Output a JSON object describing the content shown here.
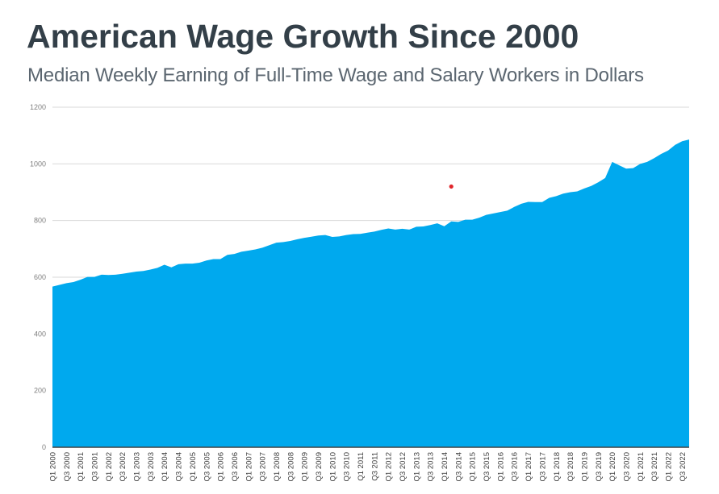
{
  "title": "American Wage Growth Since 2000",
  "subtitle": "Median Weekly Earning of Full-Time Wage and Salary Workers in Dollars",
  "colors": {
    "area": "#00a9ee",
    "grid": "#d9d9d9",
    "axis": "#404040",
    "marker": "#e0262b"
  },
  "chart_data": {
    "type": "area",
    "title": "American Wage Growth Since 2000",
    "subtitle": "Median Weekly Earning of Full-Time Wage and Salary Workers in Dollars",
    "xlabel": "",
    "ylabel": "",
    "ylim": [
      0,
      1200
    ],
    "yticks": [
      0,
      200,
      400,
      600,
      800,
      1000,
      1200
    ],
    "grid": true,
    "legend": "none",
    "x": [
      "Q1 2000",
      "Q2 2000",
      "Q3 2000",
      "Q4 2000",
      "Q1 2001",
      "Q2 2001",
      "Q3 2001",
      "Q4 2001",
      "Q1 2002",
      "Q2 2002",
      "Q3 2002",
      "Q4 2002",
      "Q1 2003",
      "Q2 2003",
      "Q3 2003",
      "Q4 2003",
      "Q1 2004",
      "Q2 2004",
      "Q3 2004",
      "Q4 2004",
      "Q1 2005",
      "Q2 2005",
      "Q3 2005",
      "Q4 2005",
      "Q1 2006",
      "Q2 2006",
      "Q3 2006",
      "Q4 2006",
      "Q1 2007",
      "Q2 2007",
      "Q3 2007",
      "Q4 2007",
      "Q1 2008",
      "Q2 2008",
      "Q3 2008",
      "Q4 2008",
      "Q1 2009",
      "Q2 2009",
      "Q3 2009",
      "Q4 2009",
      "Q1 2010",
      "Q2 2010",
      "Q3 2010",
      "Q4 2010",
      "Q1 2011",
      "Q2 2011",
      "Q3 2011",
      "Q4 2011",
      "Q1 2012",
      "Q2 2012",
      "Q3 2012",
      "Q4 2012",
      "Q1 2013",
      "Q2 2013",
      "Q3 2013",
      "Q4 2013",
      "Q1 2014",
      "Q2 2014",
      "Q3 2014",
      "Q4 2014",
      "Q1 2015",
      "Q2 2015",
      "Q3 2015",
      "Q4 2015",
      "Q1 2016",
      "Q2 2016",
      "Q3 2016",
      "Q4 2016",
      "Q1 2017",
      "Q2 2017",
      "Q3 2017",
      "Q4 2017",
      "Q1 2018",
      "Q2 2018",
      "Q3 2018",
      "Q4 2018",
      "Q1 2019",
      "Q2 2019",
      "Q3 2019",
      "Q4 2019",
      "Q1 2020",
      "Q2 2020",
      "Q3 2020",
      "Q4 2020",
      "Q1 2021",
      "Q2 2021",
      "Q3 2021",
      "Q4 2021",
      "Q1 2022",
      "Q2 2022",
      "Q3 2022",
      "Q4 2022"
    ],
    "xtick_labels": [
      "Q1 2000",
      "Q3 2000",
      "Q1 2001",
      "Q3 2001",
      "Q1 2002",
      "Q3 2002",
      "Q1 2003",
      "Q3 2003",
      "Q1 2004",
      "Q3 2004",
      "Q1 2005",
      "Q3 2005",
      "Q1 2006",
      "Q3 2006",
      "Q1 2007",
      "Q3 2007",
      "Q1 2008",
      "Q3 2008",
      "Q1 2009",
      "Q3 2009",
      "Q1 2010",
      "Q3 2010",
      "Q1 2011",
      "Q3 2011",
      "Q1 2012",
      "Q3 2012",
      "Q1 2013",
      "Q3 2013",
      "Q1 2014",
      "Q3 2014",
      "Q1 2015",
      "Q3 2015",
      "Q1 2016",
      "Q3 2016",
      "Q1 2017",
      "Q3 2017",
      "Q1 2018",
      "Q3 2018",
      "Q1 2019",
      "Q3 2019",
      "Q1 2020",
      "Q3 2020",
      "Q1 2021",
      "Q3 2021",
      "Q1 2022",
      "Q3 2022"
    ],
    "series": [
      {
        "values": [
          567,
          573,
          579,
          583,
          591,
          601,
          601,
          609,
          608,
          609,
          612,
          616,
          620,
          622,
          627,
          633,
          644,
          635,
          646,
          648,
          648,
          651,
          659,
          664,
          664,
          679,
          682,
          690,
          694,
          698,
          704,
          713,
          722,
          724,
          728,
          734,
          739,
          743,
          747,
          749,
          742,
          744,
          749,
          752,
          753,
          757,
          761,
          767,
          772,
          768,
          771,
          768,
          778,
          779,
          784,
          790,
          780,
          797,
          795,
          803,
          803,
          810,
          820,
          825,
          830,
          835,
          848,
          859,
          866,
          865,
          865,
          880,
          886,
          895,
          900,
          903,
          913,
          922,
          935,
          950,
          1007,
          995,
          983,
          985,
          1000,
          1007,
          1020,
          1035,
          1047,
          1067,
          1080,
          1086
        ]
      }
    ],
    "annotations": [
      {
        "type": "point",
        "x": "Q2 2014",
        "y": 920
      }
    ]
  }
}
